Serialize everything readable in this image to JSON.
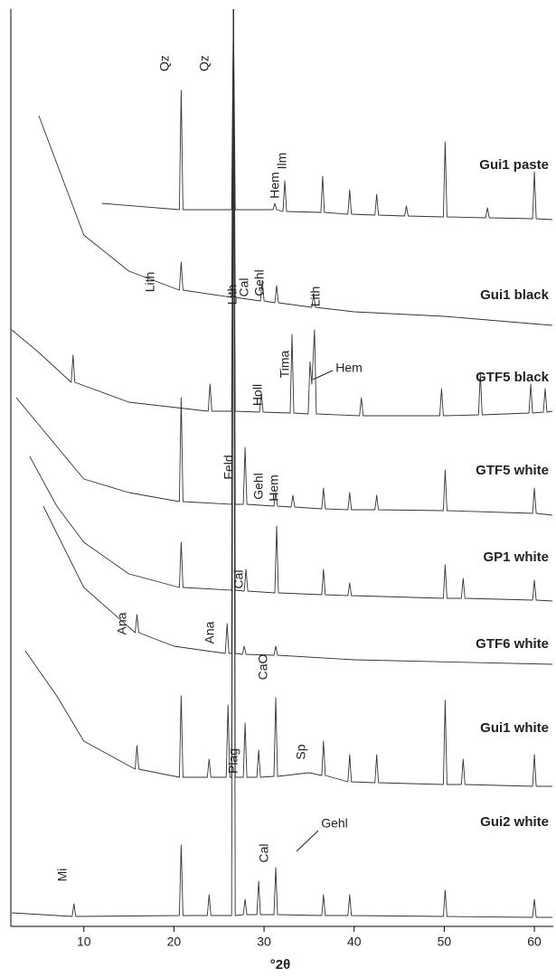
{
  "chart_data": {
    "type": "line",
    "xlabel": "°2θ",
    "xlim": [
      1.9,
      62.1
    ],
    "xticks": [
      10,
      20,
      30,
      40,
      50,
      60
    ],
    "ylim": [
      0,
      1015
    ],
    "color": "#333333",
    "series": [
      {
        "name": "Gui1 paste",
        "x": [
          12,
          20.6,
          20.8,
          21.0,
          26.4,
          26.6,
          26.8,
          31.0,
          31.2,
          31.4,
          32.1,
          32.3,
          32.5,
          36.3,
          36.5,
          36.7,
          39.3,
          39.5,
          39.7,
          42.3,
          42.5,
          42.7,
          45.6,
          45.8,
          46.0,
          49.9,
          50.1,
          50.3,
          54.6,
          54.8,
          55.0,
          59.8,
          60.0,
          60.2,
          62
        ],
        "values": [
          800,
          793,
          925,
          793,
          793,
          1015,
          793,
          793,
          800,
          793,
          791,
          825,
          791,
          790,
          830,
          790,
          788,
          815,
          788,
          787,
          810,
          787,
          786,
          797,
          786,
          785,
          868,
          785,
          784,
          795,
          784,
          783,
          835,
          783,
          782
        ]
      },
      {
        "name": "Gui1 black",
        "x": [
          5,
          10,
          15,
          20.6,
          20.8,
          21.0,
          26.4,
          26.6,
          26.8,
          29.6,
          29.8,
          30.0,
          31.2,
          31.4,
          31.6,
          35.3,
          35.5,
          35.7,
          40,
          50,
          62
        ],
        "values": [
          897,
          765,
          725,
          704,
          735,
          704,
          696,
          1015,
          696,
          692,
          715,
          692,
          690,
          709,
          690,
          685,
          700,
          685,
          680,
          675,
          665
        ]
      },
      {
        "name": "GTF5 black",
        "x": [
          2,
          5,
          8.6,
          8.8,
          9.0,
          15,
          23.8,
          24.0,
          24.2,
          26.4,
          26.6,
          26.8,
          29.5,
          29.7,
          29.9,
          32.9,
          33.1,
          33.3,
          34.9,
          35.1,
          35.3,
          35.6,
          35.8,
          40.6,
          40.8,
          41.0,
          49.5,
          49.7,
          49.9,
          53.8,
          54.0,
          54.2,
          59.4,
          59.6,
          59.8,
          61.0,
          61.2,
          61.4,
          62
        ],
        "values": [
          660,
          635,
          602,
          632,
          602,
          580,
          570,
          600,
          570,
          570,
          1015,
          570,
          569,
          590,
          569,
          568,
          655,
          568,
          567,
          625,
          600,
          660,
          567,
          565,
          585,
          565,
          565,
          595,
          565,
          566,
          613,
          566,
          568,
          600,
          568,
          569,
          595,
          569,
          570
        ]
      },
      {
        "name": "GTF5 white",
        "x": [
          2.5,
          5,
          10,
          15,
          20.6,
          20.8,
          21.0,
          26.4,
          26.6,
          26.8,
          27.7,
          27.9,
          28.1,
          31.1,
          31.3,
          31.5,
          33.0,
          33.2,
          33.4,
          36.4,
          36.6,
          36.8,
          39.3,
          39.5,
          39.7,
          42.3,
          42.5,
          42.7,
          49.9,
          50.1,
          50.3,
          59.8,
          60.0,
          60.2,
          62
        ],
        "values": [
          585,
          555,
          495,
          480,
          470,
          585,
          470,
          467,
          1015,
          467,
          467,
          530,
          467,
          465,
          480,
          465,
          464,
          477,
          464,
          462,
          485,
          462,
          461,
          480,
          461,
          461,
          477,
          461,
          460,
          505,
          460,
          457,
          485,
          457,
          455
        ]
      },
      {
        "name": "GP1 white",
        "x": [
          4,
          7,
          10,
          15,
          20.6,
          20.8,
          21.0,
          26.4,
          26.6,
          26.8,
          27.8,
          28.0,
          28.2,
          31.2,
          31.4,
          31.6,
          36.4,
          36.6,
          36.8,
          39.3,
          39.5,
          39.7,
          49.9,
          50.1,
          50.3,
          51.9,
          52.1,
          52.3,
          59.8,
          60.0,
          60.2,
          62
        ],
        "values": [
          520,
          465,
          425,
          390,
          375,
          425,
          375,
          372,
          1015,
          372,
          371,
          395,
          371,
          369,
          443,
          369,
          367,
          395,
          367,
          366,
          380,
          366,
          363,
          400,
          363,
          363,
          385,
          363,
          361,
          383,
          361,
          360
        ]
      },
      {
        "name": "GTF6 white",
        "x": [
          5.5,
          10,
          15.7,
          15.9,
          16.1,
          20,
          25.7,
          25.9,
          26.1,
          26.4,
          26.6,
          26.8,
          27.6,
          27.8,
          28.0,
          31.1,
          31.3,
          31.5,
          40,
          62
        ],
        "values": [
          465,
          375,
          325,
          345,
          325,
          310,
          302,
          335,
          302,
          302,
          1015,
          302,
          301,
          310,
          301,
          300,
          310,
          300,
          295,
          290
        ]
      },
      {
        "name": "Gui1 white",
        "x": [
          3.5,
          7,
          10,
          15.7,
          15.9,
          16.1,
          20.6,
          20.8,
          21.0,
          23.7,
          23.9,
          24.1,
          25.8,
          26.0,
          26.2,
          26.4,
          26.6,
          26.8,
          27.7,
          27.9,
          28.1,
          29.2,
          29.4,
          29.6,
          31.1,
          31.3,
          31.5,
          35,
          36.4,
          36.6,
          36.8,
          39.3,
          39.5,
          39.7,
          42.3,
          42.5,
          42.7,
          49.9,
          50.1,
          50.3,
          51.9,
          52.1,
          52.3,
          59.8,
          60.0,
          60.2,
          62
        ],
        "values": [
          305,
          255,
          205,
          174,
          200,
          174,
          165,
          255,
          165,
          165,
          185,
          165,
          165,
          245,
          165,
          165,
          1015,
          165,
          165,
          225,
          165,
          165,
          195,
          165,
          166,
          253,
          166,
          170,
          167,
          205,
          167,
          160,
          190,
          160,
          159,
          190,
          159,
          157,
          250,
          157,
          157,
          185,
          157,
          155,
          190,
          155,
          155
        ]
      },
      {
        "name": "Gui2 white",
        "x": [
          2,
          8.7,
          8.9,
          9.1,
          20.6,
          20.8,
          21.0,
          23.7,
          23.9,
          24.1,
          26.4,
          26.6,
          26.8,
          27.7,
          27.9,
          28.1,
          29.2,
          29.4,
          29.6,
          31.1,
          31.3,
          31.5,
          36.4,
          36.6,
          36.8,
          39.3,
          39.5,
          39.7,
          49.9,
          50.1,
          50.3,
          59.8,
          60.0,
          60.2,
          62
        ],
        "values": [
          15,
          11,
          25,
          11,
          12,
          90,
          12,
          12,
          35,
          12,
          12,
          1015,
          12,
          13,
          30,
          13,
          13,
          50,
          13,
          13,
          65,
          13,
          12,
          35,
          12,
          12,
          35,
          12,
          11,
          40,
          11,
          10,
          30,
          10,
          10
        ]
      }
    ],
    "annotations": [
      "Qz",
      "Qz",
      "Ilm",
      "Hem",
      "Lith",
      "Lith",
      "Cal",
      "Gehl",
      "Lith",
      "Holl",
      "Tima",
      "Hem",
      "Feld",
      "Gehl",
      "Hem",
      "Cal",
      "Ana",
      "Ana",
      "CaO",
      "Plag",
      "Sp",
      "Mi",
      "Cal",
      "Gehl"
    ]
  }
}
